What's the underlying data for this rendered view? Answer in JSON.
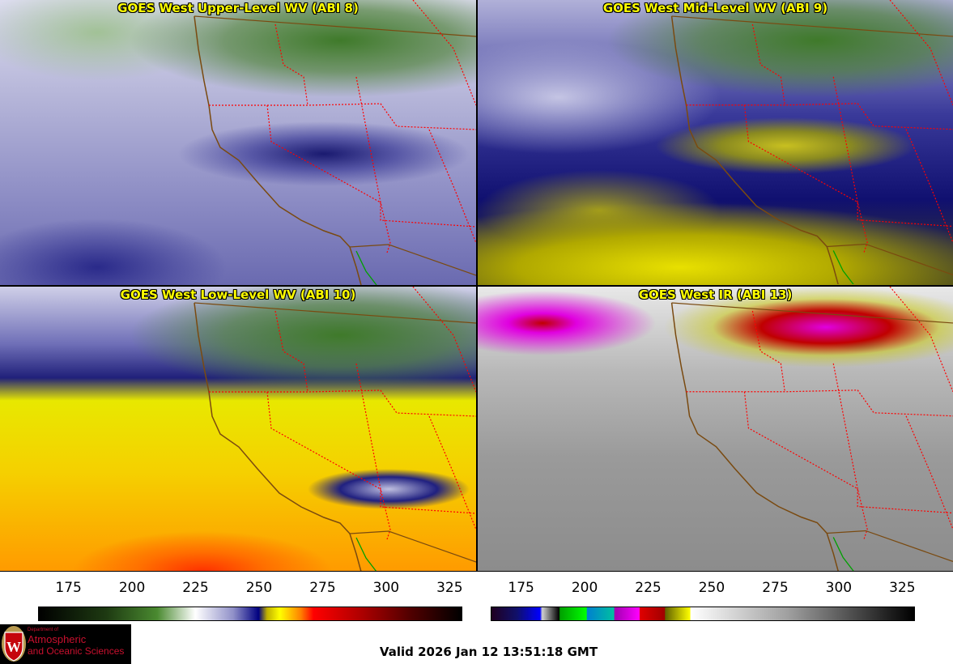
{
  "panels": [
    {
      "title": "GOES West Upper-Level WV (ABI 8)"
    },
    {
      "title": "GOES West Mid-Level WV (ABI 9)"
    },
    {
      "title": "GOES West Low-Level WV (ABI 10)"
    },
    {
      "title": "GOES West IR (ABI 13)"
    }
  ],
  "colorbars": {
    "water_vapor": {
      "range": [
        163,
        330
      ],
      "ticks": [
        "175",
        "200",
        "225",
        "250",
        "275",
        "300",
        "325"
      ]
    },
    "infrared": {
      "range": [
        163,
        330
      ],
      "ticks": [
        "175",
        "200",
        "225",
        "250",
        "275",
        "300",
        "325"
      ]
    }
  },
  "logo": {
    "line1": "Department of",
    "line2": "Atmospheric",
    "line3": "and Oceanic Sciences",
    "crest_letter": "W"
  },
  "valid_time": "Valid 2026 Jan 12 13:51:18 GMT",
  "colors": {
    "title": "#ffff00",
    "state_border": "#ff0000",
    "coastline": "#7a4a10",
    "mexico_border": "#00a000"
  }
}
